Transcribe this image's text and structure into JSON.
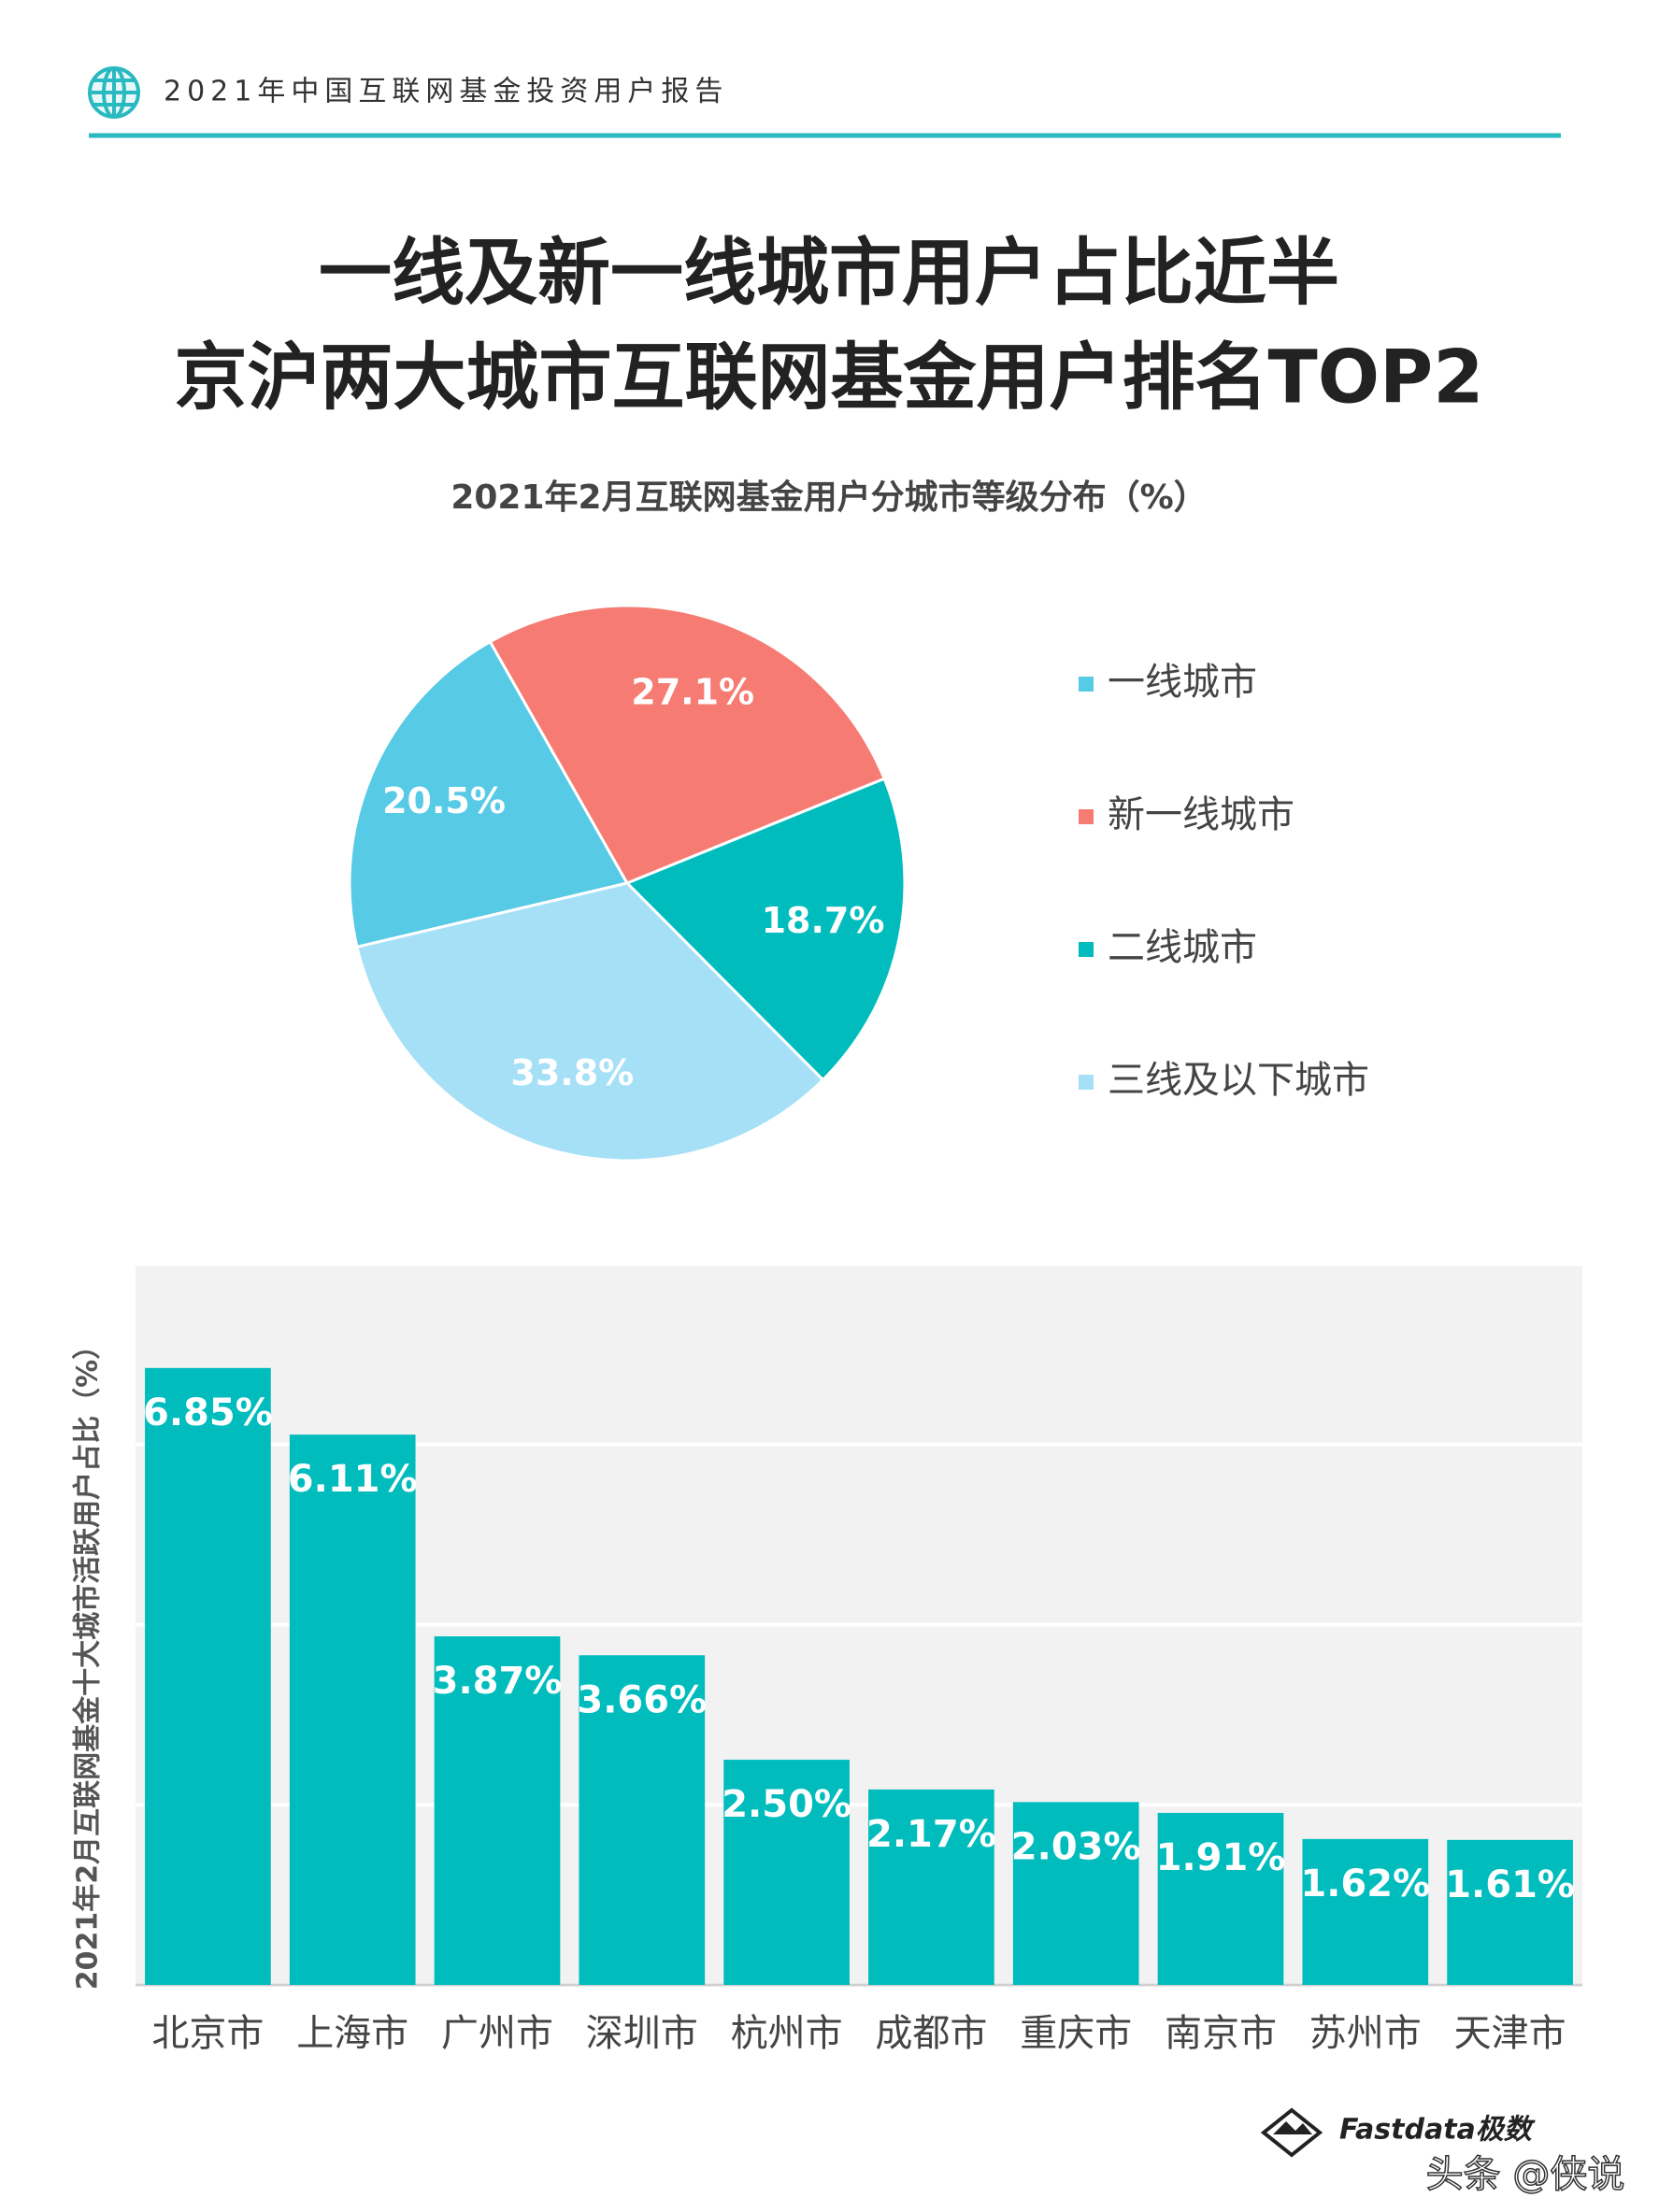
{
  "header": "2021年中国互联网基金投资用户报告",
  "title": [
    "一线及新一线城市用户占比近半",
    "京沪两大城市互联网基金用户排名TOP2"
  ],
  "chart_data": [
    {
      "type": "pie",
      "title": "2021年2月互联网基金用户分城市等级分布（%）",
      "categories": [
        "一线城市",
        "新一线城市",
        "二线城市",
        "三线及以下城市"
      ],
      "values": [
        20.5,
        27.1,
        18.7,
        33.8
      ],
      "value_labels": [
        "20.5%",
        "27.1%",
        "18.7%",
        "33.8%"
      ],
      "colors": [
        "#57cae5",
        "#f57b73",
        "#00bcbd",
        "#a6e0f7"
      ],
      "legend": "right"
    },
    {
      "type": "bar",
      "y_label": "2021年2月互联网基金十大城市活跃用户占比（%）",
      "categories": [
        "北京市",
        "上海市",
        "广州市",
        "深圳市",
        "杭州市",
        "成都市",
        "重庆市",
        "南京市",
        "苏州市",
        "天津市"
      ],
      "values": [
        6.85,
        6.11,
        3.87,
        3.66,
        2.5,
        2.17,
        2.03,
        1.91,
        1.62,
        1.61
      ],
      "value_labels": [
        "6.85%",
        "6.11%",
        "3.87%",
        "3.66%",
        "2.50%",
        "2.17%",
        "2.03%",
        "1.91%",
        "1.62%",
        "1.61%"
      ],
      "color": "#00bcbd",
      "ylim": [
        0,
        8
      ],
      "yticks": [
        0,
        2,
        4,
        6,
        8
      ],
      "grid": true
    }
  ],
  "footer": {
    "logo": "Fastdata极数",
    "watermark": "头条 @侠说"
  }
}
